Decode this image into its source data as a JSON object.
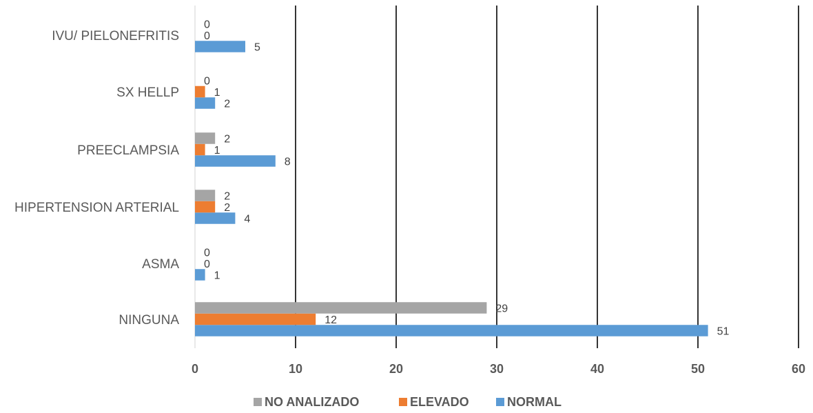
{
  "chart_data": {
    "type": "bar",
    "orientation": "horizontal",
    "title": "",
    "xlabel": "",
    "ylabel": "",
    "categories": [
      "NINGUNA",
      "ASMA",
      "HIPERTENSION ARTERIAL",
      "PREECLAMPSIA",
      "SX HELLP",
      "IVU/ PIELONEFRITIS"
    ],
    "series": [
      {
        "name": "NORMAL",
        "color": "#5B9BD5",
        "values": [
          51,
          1,
          4,
          8,
          2,
          5
        ]
      },
      {
        "name": "ELEVADO",
        "color": "#ED7D31",
        "values": [
          12,
          0,
          2,
          1,
          1,
          0
        ]
      },
      {
        "name": "NO ANALIZADO",
        "color": "#A5A5A5",
        "values": [
          29,
          0,
          2,
          2,
          0,
          0
        ]
      }
    ],
    "xlim": [
      0,
      60
    ],
    "xticks": [
      0,
      10,
      20,
      30,
      40,
      50,
      60
    ],
    "grid": true,
    "legend": {
      "position": "bottom",
      "order": [
        "NO ANALIZADO",
        "ELEVADO",
        "NORMAL"
      ]
    }
  }
}
